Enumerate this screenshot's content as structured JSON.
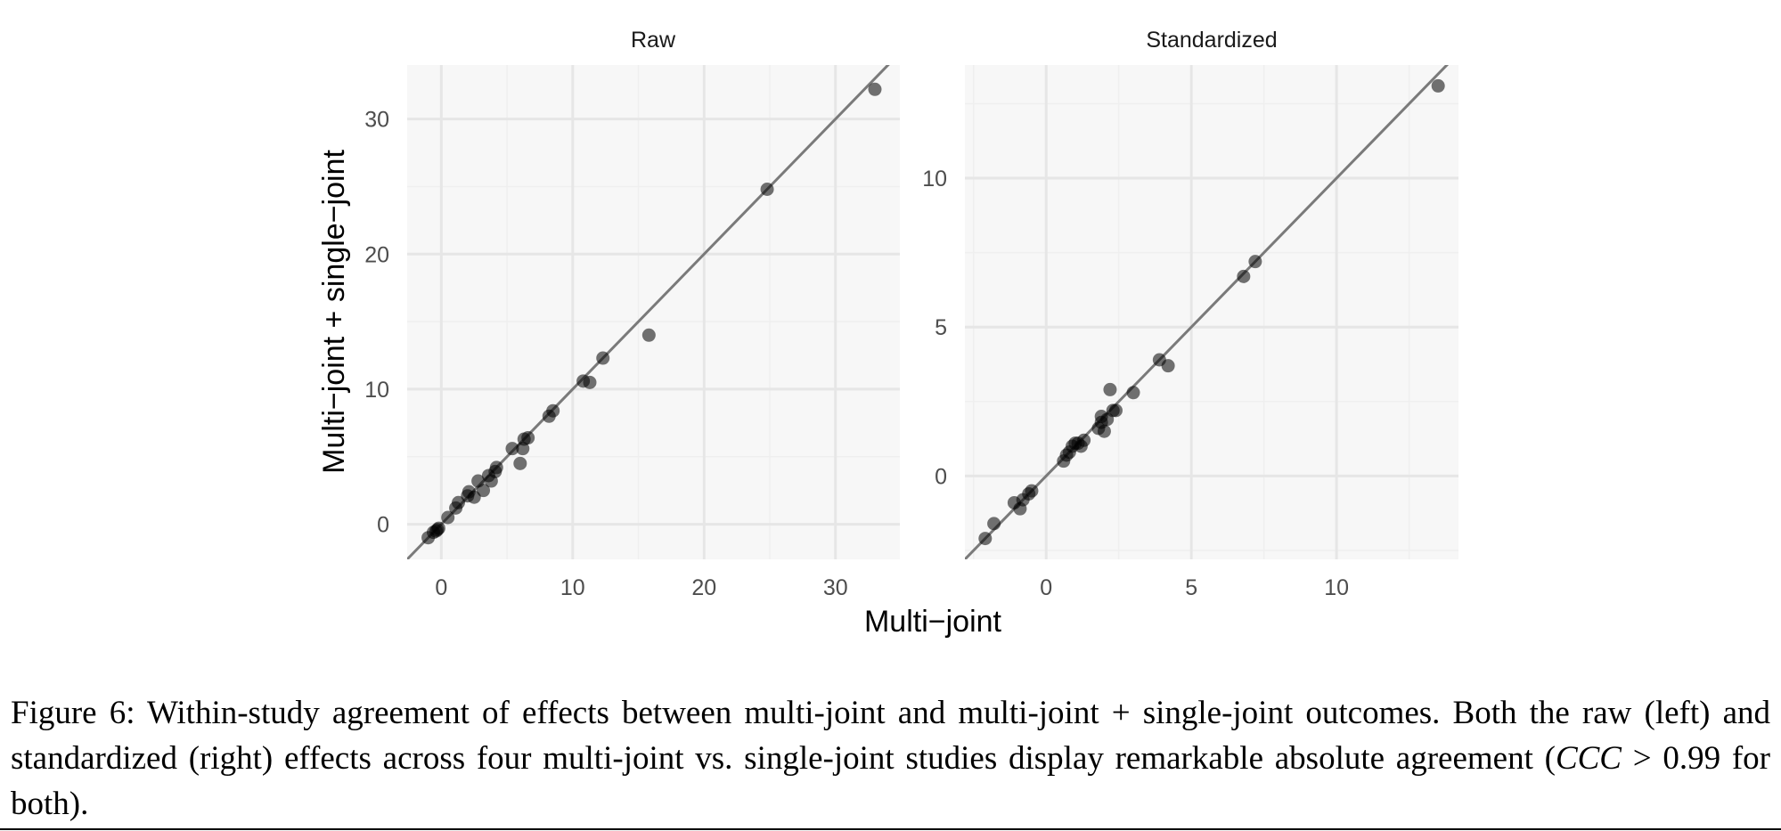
{
  "colors": {
    "panel_background": "#f7f7f7",
    "grid_major": "#e6e6e6",
    "grid_minor": "#efefef",
    "point": "#000000",
    "identity_line": "#7a7a7a"
  },
  "chart_data": [
    {
      "type": "scatter",
      "title": "Raw",
      "xlabel": "Multi−joint",
      "ylabel": "Multi−joint + single−joint",
      "xlim": [
        -2.6,
        34.9
      ],
      "ylim": [
        -2.6,
        34.0
      ],
      "xticks": [
        0,
        10,
        20,
        30
      ],
      "yticks": [
        0,
        10,
        20,
        30
      ],
      "grid": true,
      "reference_line": "y = x",
      "points": [
        [
          -1.0,
          -1.0
        ],
        [
          -0.6,
          -0.6
        ],
        [
          -0.4,
          -0.5
        ],
        [
          -0.3,
          -0.4
        ],
        [
          -0.2,
          -0.3
        ],
        [
          0.5,
          0.5
        ],
        [
          1.1,
          1.2
        ],
        [
          1.3,
          1.6
        ],
        [
          2.0,
          2.1
        ],
        [
          2.1,
          2.4
        ],
        [
          2.5,
          2.0
        ],
        [
          2.8,
          3.2
        ],
        [
          3.2,
          2.5
        ],
        [
          3.6,
          3.6
        ],
        [
          3.8,
          3.2
        ],
        [
          4.1,
          3.9
        ],
        [
          4.2,
          4.2
        ],
        [
          5.4,
          5.6
        ],
        [
          6.0,
          4.5
        ],
        [
          6.2,
          5.6
        ],
        [
          6.3,
          6.3
        ],
        [
          6.6,
          6.4
        ],
        [
          8.2,
          8.0
        ],
        [
          8.5,
          8.4
        ],
        [
          10.8,
          10.6
        ],
        [
          11.3,
          10.5
        ],
        [
          12.3,
          12.3
        ],
        [
          15.8,
          14.0
        ],
        [
          24.8,
          24.8
        ],
        [
          33.0,
          32.2
        ]
      ]
    },
    {
      "type": "scatter",
      "title": "Standardized",
      "xlabel": "Multi−joint",
      "ylabel": "Multi−joint + single−joint",
      "xlim": [
        -2.8,
        14.2
      ],
      "ylim": [
        -2.8,
        13.8
      ],
      "xticks": [
        0,
        5,
        10
      ],
      "yticks": [
        0,
        5,
        10
      ],
      "grid": true,
      "reference_line": "y = x",
      "points": [
        [
          -2.1,
          -2.1
        ],
        [
          -1.8,
          -1.6
        ],
        [
          -1.1,
          -0.9
        ],
        [
          -0.9,
          -1.1
        ],
        [
          -0.8,
          -0.8
        ],
        [
          -0.6,
          -0.6
        ],
        [
          -0.5,
          -0.5
        ],
        [
          0.6,
          0.5
        ],
        [
          0.7,
          0.7
        ],
        [
          0.8,
          0.8
        ],
        [
          0.9,
          1.0
        ],
        [
          1.0,
          1.1
        ],
        [
          1.1,
          1.1
        ],
        [
          1.2,
          1.0
        ],
        [
          1.3,
          1.2
        ],
        [
          1.8,
          1.6
        ],
        [
          1.9,
          1.8
        ],
        [
          1.9,
          2.0
        ],
        [
          2.0,
          1.5
        ],
        [
          2.1,
          1.9
        ],
        [
          2.2,
          2.9
        ],
        [
          2.3,
          2.2
        ],
        [
          2.4,
          2.2
        ],
        [
          3.0,
          2.8
        ],
        [
          3.9,
          3.9
        ],
        [
          4.2,
          3.7
        ],
        [
          6.8,
          6.7
        ],
        [
          7.2,
          7.2
        ],
        [
          13.5,
          13.1
        ]
      ]
    }
  ],
  "caption": {
    "part1": "Figure 6:  Within-study agreement of effects between multi-joint and multi-joint + single-joint outcomes. Both the raw (left) and standardized (right) effects across four multi-joint vs.  single-joint studies display remarkable absolute agreement (",
    "math": "CCC",
    "part2": " > 0.99 for both)."
  }
}
